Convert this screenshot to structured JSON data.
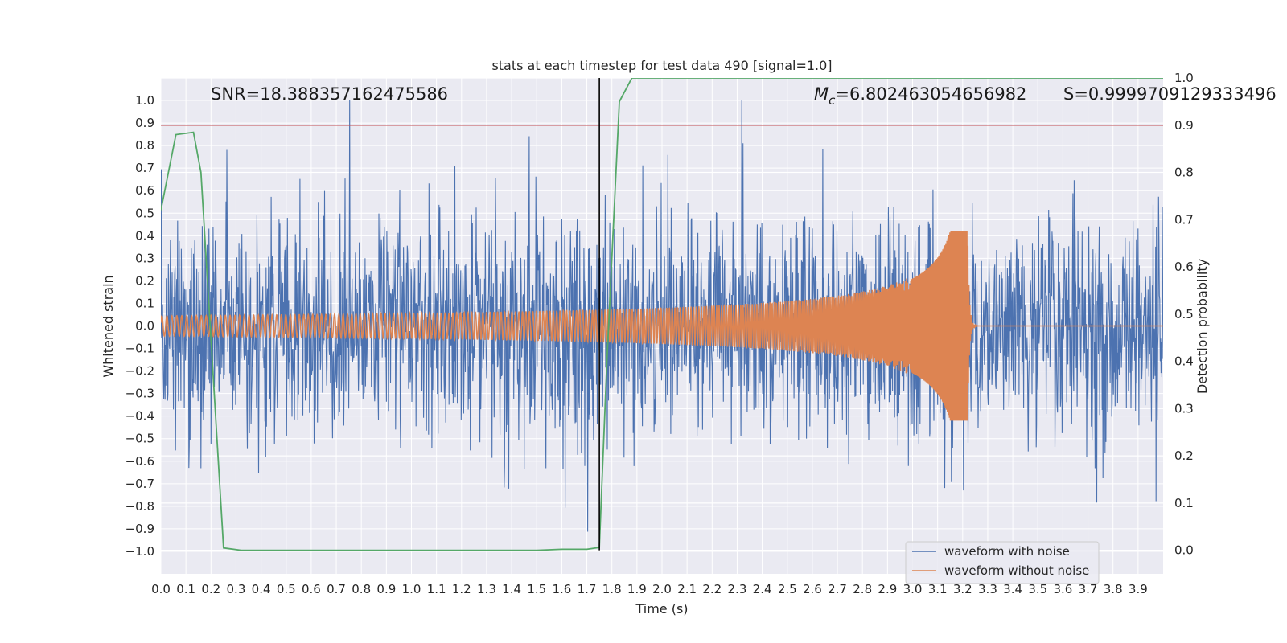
{
  "chart_data": {
    "type": "line",
    "title": "stats at each timestep for test data 490 [signal=1.0]",
    "xlabel": "Time (s)",
    "ylabel": "Whitened strain",
    "y2label": "Detection probability",
    "xlim": [
      0.0,
      4.0
    ],
    "ylim": [
      -1.1,
      1.1
    ],
    "y2lim": [
      -0.05,
      1.0
    ],
    "grid": true,
    "x_ticks": [
      "0.0",
      "0.1",
      "0.2",
      "0.3",
      "0.4",
      "0.5",
      "0.6",
      "0.7",
      "0.8",
      "0.9",
      "1.0",
      "1.1",
      "1.2",
      "1.3",
      "1.4",
      "1.5",
      "1.6",
      "1.7",
      "1.8",
      "1.9",
      "2.0",
      "2.1",
      "2.2",
      "2.3",
      "2.4",
      "2.5",
      "2.6",
      "2.7",
      "2.8",
      "2.9",
      "3.0",
      "3.1",
      "3.2",
      "3.3",
      "3.4",
      "3.5",
      "3.6",
      "3.7",
      "3.8",
      "3.9"
    ],
    "y_ticks": [
      "1.0",
      "0.9",
      "0.8",
      "0.7",
      "0.6",
      "0.5",
      "0.4",
      "0.3",
      "0.2",
      "0.1",
      "0.0",
      "−0.1",
      "−0.2",
      "−0.3",
      "−0.4",
      "−0.5",
      "−0.6",
      "−0.7",
      "−0.8",
      "−0.9",
      "−1.0"
    ],
    "y2_ticks": [
      "1.0",
      "0.9",
      "0.8",
      "0.7",
      "0.6",
      "0.5",
      "0.4",
      "0.3",
      "0.2",
      "0.1",
      "0.0"
    ],
    "annotations": {
      "snr": "SNR=18.388357162475586",
      "mc_symbol": "M",
      "mc_sub": "c",
      "mc_value": "=6.802463054656982",
      "s_value": "S=0.9999709129333496"
    },
    "threshold_y2": 0.9,
    "marker_x": 1.75,
    "series": [
      {
        "name": "waveform with noise",
        "color": "#4c72b0",
        "axis": "left",
        "description": "whitened noisy strain, amplitude mostly within ±0.5 with spikes up to ±1.0"
      },
      {
        "name": "waveform without noise",
        "color": "#dd8452",
        "axis": "left",
        "chirp": {
          "start": 0.0,
          "merger": 3.22,
          "amp_start": 0.045,
          "amp_peak": 0.45,
          "f_start": 50,
          "f_peak": 250
        }
      },
      {
        "name": "detection probability",
        "color": "#55a868",
        "axis": "right",
        "x": [
          0.0,
          0.06,
          0.13,
          0.16,
          0.25,
          0.32,
          1.5,
          1.6,
          1.7,
          1.75,
          1.78,
          1.83,
          1.88,
          4.0
        ],
        "values": [
          0.72,
          0.88,
          0.885,
          0.8,
          0.005,
          0.0,
          0.0,
          0.002,
          0.002,
          0.006,
          0.4,
          0.95,
          1.0,
          1.0
        ]
      }
    ],
    "legend": {
      "position": "lower-right",
      "entries": [
        "waveform with noise",
        "waveform without noise"
      ]
    },
    "colors": {
      "background": "#eaeaf2",
      "grid": "#ffffff",
      "threshold": "#c44e52",
      "marker": "#000000"
    }
  }
}
